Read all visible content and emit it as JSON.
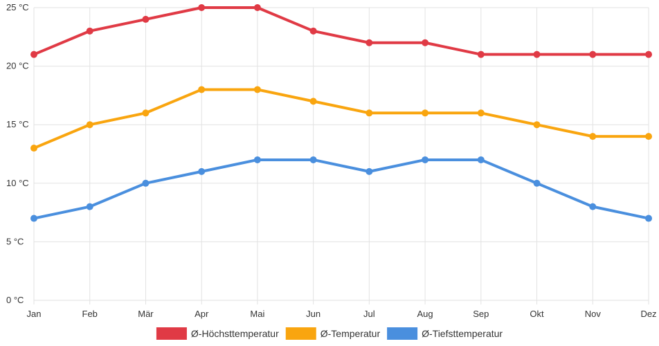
{
  "chart_data": {
    "type": "line",
    "title": "",
    "xlabel": "",
    "ylabel": "",
    "categories": [
      "Jan",
      "Feb",
      "Mär",
      "Apr",
      "Mai",
      "Jun",
      "Jul",
      "Aug",
      "Sep",
      "Okt",
      "Nov",
      "Dez"
    ],
    "y_ticks": [
      {
        "value": 0,
        "label": "0 °C"
      },
      {
        "value": 5,
        "label": "5 °C"
      },
      {
        "value": 10,
        "label": "10 °C"
      },
      {
        "value": 15,
        "label": "15 °C"
      },
      {
        "value": 20,
        "label": "20 °C"
      },
      {
        "value": 25,
        "label": "25 °C"
      }
    ],
    "ylim": [
      0,
      25
    ],
    "grid": true,
    "legend_position": "bottom",
    "series": [
      {
        "key": "max",
        "name": "Ø-Höchsttemperatur",
        "color": "#e03a45",
        "values": [
          21,
          23,
          24,
          25,
          25,
          23,
          22,
          22,
          21,
          21,
          21,
          21
        ]
      },
      {
        "key": "avg",
        "name": "Ø-Temperatur",
        "color": "#f9a50f",
        "values": [
          13,
          15,
          16,
          18,
          18,
          17,
          16,
          16,
          16,
          15,
          14,
          14
        ]
      },
      {
        "key": "min",
        "name": "Ø-Tiefsttemperatur",
        "color": "#4a8fde",
        "values": [
          7,
          8,
          10,
          11,
          12,
          12,
          11,
          12,
          12,
          10,
          8,
          7
        ]
      }
    ]
  }
}
